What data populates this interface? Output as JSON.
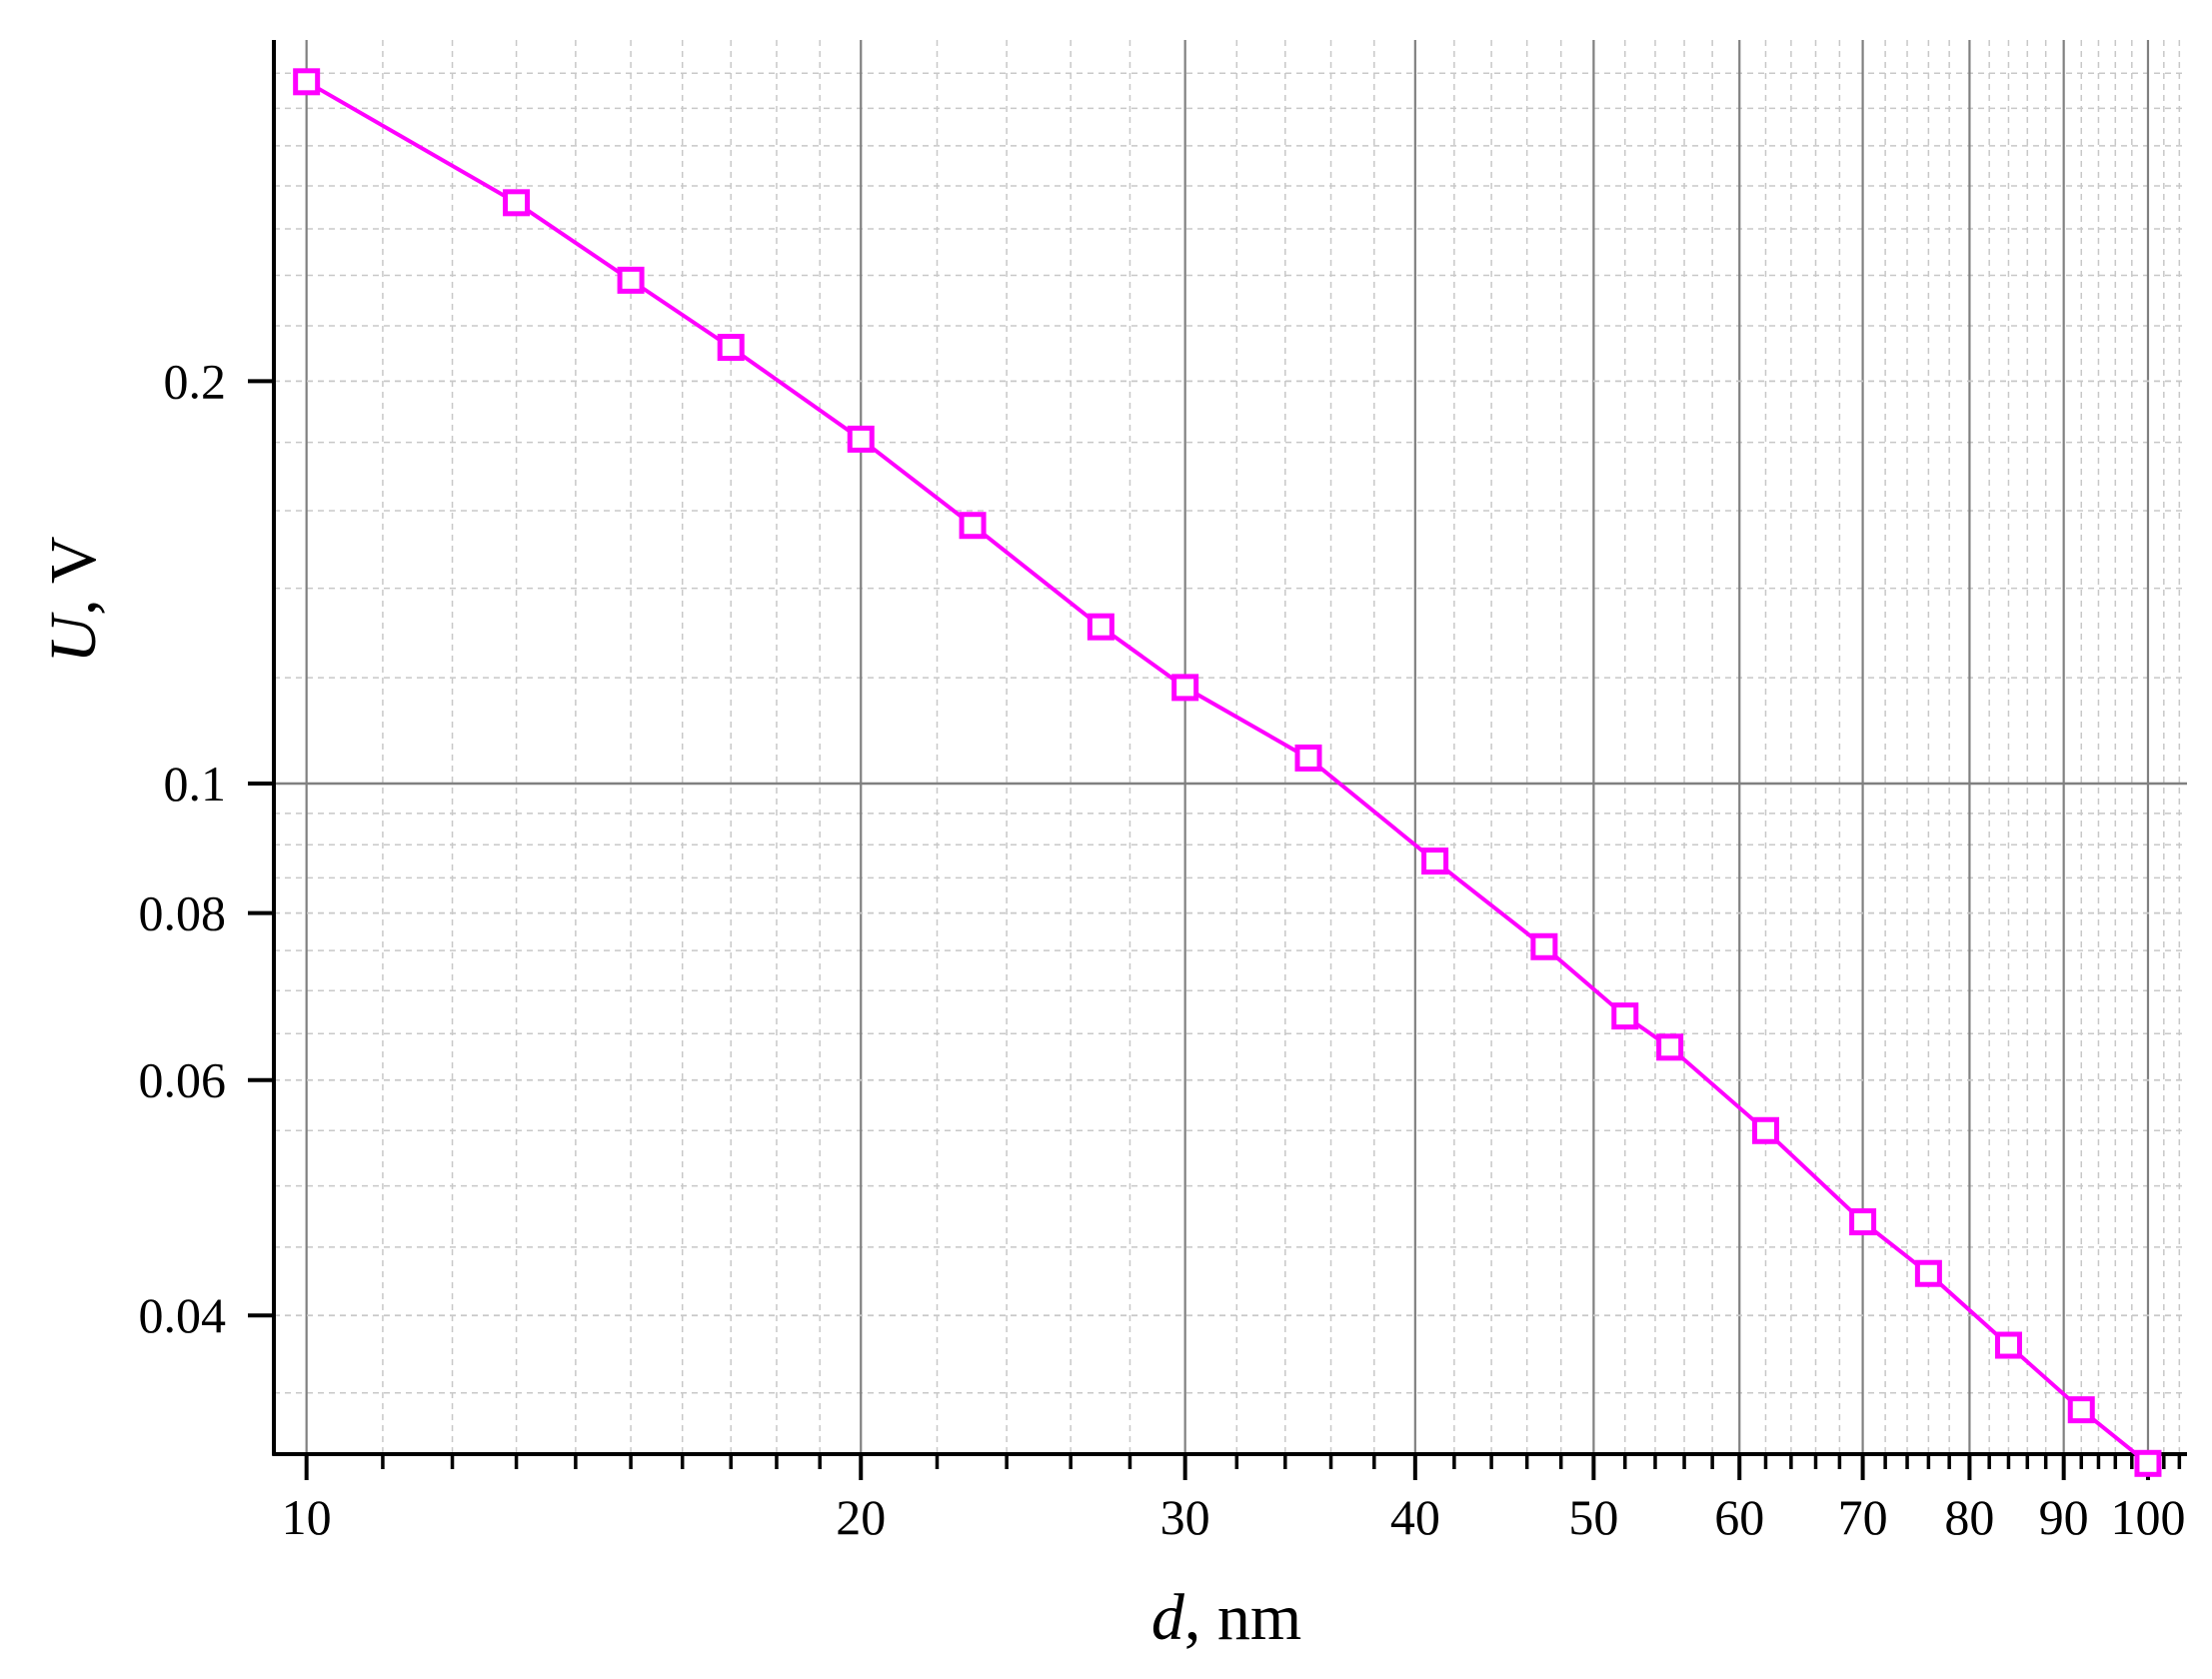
{
  "chart_data": {
    "type": "line",
    "xlabel": {
      "var": "d",
      "unit": ", nm"
    },
    "ylabel": {
      "var": "U",
      "unit": ", V"
    },
    "x_scale": "log",
    "y_scale": "log",
    "xlim": [
      9.6,
      105
    ],
    "ylim": [
      0.0315,
      0.36
    ],
    "x_ticks": [
      {
        "value": 10,
        "label": "10"
      },
      {
        "value": 20,
        "label": "20"
      },
      {
        "value": 30,
        "label": "30"
      },
      {
        "value": 40,
        "label": "40"
      },
      {
        "value": 50,
        "label": "50"
      },
      {
        "value": 60,
        "label": "60"
      },
      {
        "value": 70,
        "label": "70"
      },
      {
        "value": 80,
        "label": "80"
      },
      {
        "value": 90,
        "label": "90"
      },
      {
        "value": 100,
        "label": "100"
      }
    ],
    "y_ticks": [
      {
        "value": 0.04,
        "label": "0.04"
      },
      {
        "value": 0.06,
        "label": "0.06"
      },
      {
        "value": 0.08,
        "label": "0.08"
      },
      {
        "value": 0.1,
        "label": "0.1"
      },
      {
        "value": 0.2,
        "label": "0.2"
      }
    ],
    "grid": true,
    "colors": {
      "series": "#ff00ff",
      "major_grid": "#808080",
      "minor_grid": "#c8c8c8",
      "axis": "#000000"
    },
    "series": [
      {
        "marker": "open-square",
        "x": [
          10,
          13,
          15,
          17,
          20,
          23,
          27,
          30,
          35,
          41,
          47,
          52,
          55,
          62,
          70,
          76,
          84,
          92,
          100
        ],
        "y": [
          0.335,
          0.272,
          0.238,
          0.212,
          0.181,
          0.156,
          0.131,
          0.118,
          0.1045,
          0.0875,
          0.0755,
          0.067,
          0.0635,
          0.055,
          0.047,
          0.043,
          0.038,
          0.034,
          0.031
        ]
      }
    ]
  }
}
